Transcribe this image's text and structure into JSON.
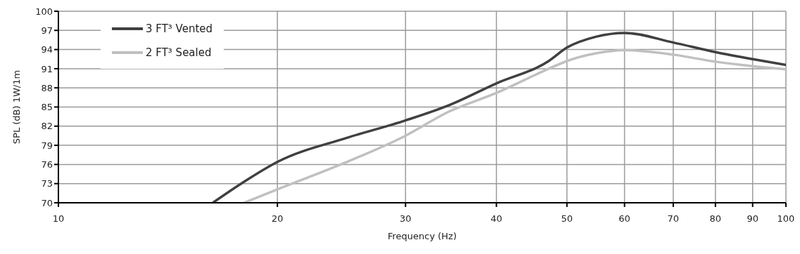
{
  "chart_data": {
    "type": "line",
    "xlabel": "Frequency (Hz)",
    "ylabel": "SPL (dB) 1W/1m",
    "series": [
      {
        "name": "3 FT³ Vented",
        "color": "#404040",
        "x": [
          16.3,
          18,
          20,
          24.8,
          30,
          34.3,
          40,
          47.2,
          50,
          54.8,
          60,
          70,
          80,
          90,
          100
        ],
        "values": [
          70,
          73.3,
          76.4,
          80.1,
          82.9,
          85.2,
          88.7,
          92.2,
          94.3,
          96,
          96.6,
          95.1,
          93.6,
          92.5,
          91.6
        ]
      },
      {
        "name": "2 FT³ Sealed",
        "color": "#c0c0c0",
        "x": [
          18,
          20,
          24.8,
          30,
          34.3,
          40,
          47.2,
          50,
          54.8,
          60,
          70,
          80,
          90,
          100
        ],
        "values": [
          70,
          72.1,
          76.3,
          80.5,
          84.2,
          87.2,
          91,
          92.2,
          93.4,
          93.9,
          93.2,
          92.1,
          91.4,
          90.9
        ]
      }
    ],
    "log": "x",
    "xlim": [
      10,
      100
    ],
    "xticks": [
      10,
      20,
      30,
      40,
      50,
      60,
      70,
      80,
      90,
      100
    ],
    "ylim": [
      70,
      100
    ],
    "yticks": [
      70,
      73,
      76,
      79,
      82,
      85,
      88,
      91,
      94,
      97,
      100
    ],
    "grid": true,
    "legend": "top left",
    "marker": "none",
    "line_style": "solid"
  }
}
